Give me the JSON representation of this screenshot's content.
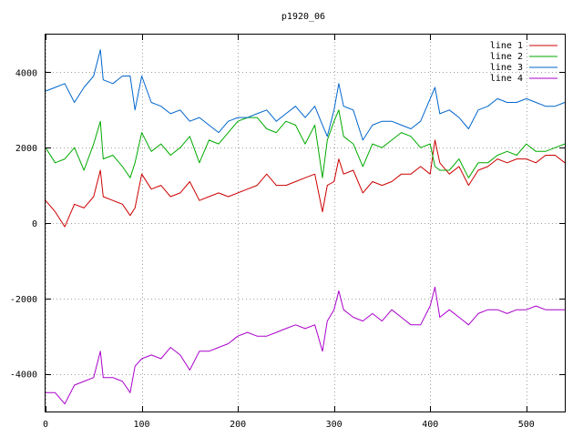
{
  "chart_data": {
    "type": "line",
    "title": "p1920_06",
    "xlabel": "",
    "ylabel": "",
    "xlim": [
      0,
      540
    ],
    "ylim": [
      -5000,
      5000
    ],
    "xticks": [
      0,
      100,
      200,
      300,
      400,
      500
    ],
    "yticks": [
      -4000,
      -2000,
      0,
      2000,
      4000
    ],
    "xtick_labels": [
      "0",
      "100",
      "200",
      "300",
      "400",
      "500"
    ],
    "ytick_labels": [
      "-4000",
      "-2000",
      "0",
      "2000",
      "4000"
    ],
    "grid": true,
    "legend_position": "top-right",
    "x": [
      0,
      10,
      20,
      30,
      40,
      50,
      57,
      60,
      70,
      80,
      88,
      93,
      100,
      110,
      120,
      130,
      140,
      150,
      160,
      170,
      180,
      190,
      200,
      210,
      220,
      230,
      240,
      250,
      260,
      270,
      280,
      288,
      293,
      300,
      305,
      310,
      320,
      330,
      340,
      350,
      360,
      370,
      380,
      390,
      400,
      405,
      410,
      420,
      430,
      440,
      450,
      460,
      470,
      480,
      490,
      500,
      510,
      520,
      530,
      540
    ],
    "series": [
      {
        "name": "line 1",
        "color": "#cc0000",
        "values": [
          600,
          300,
          -100,
          500,
          400,
          700,
          1400,
          700,
          600,
          500,
          200,
          400,
          1300,
          900,
          1000,
          700,
          800,
          1100,
          600,
          700,
          800,
          700,
          800,
          900,
          1000,
          1300,
          1000,
          1000,
          1100,
          1200,
          1300,
          300,
          1000,
          1100,
          1700,
          1300,
          1400,
          800,
          1100,
          1000,
          1100,
          1300,
          1300,
          1500,
          1300,
          2200,
          1600,
          1300,
          1500,
          1000,
          1400,
          1500,
          1700,
          1600,
          1700,
          1700,
          1600,
          1800,
          1800,
          1600
        ]
      },
      {
        "name": "line 2",
        "color": "#00aa00",
        "values": [
          2000,
          1600,
          1700,
          2000,
          1400,
          2100,
          2700,
          1700,
          1800,
          1500,
          1200,
          1600,
          2400,
          1900,
          2100,
          1800,
          2000,
          2300,
          1600,
          2200,
          2100,
          2400,
          2700,
          2800,
          2800,
          2500,
          2400,
          2700,
          2600,
          2100,
          2600,
          1200,
          2200,
          2700,
          3000,
          2300,
          2100,
          1500,
          2100,
          2000,
          2200,
          2400,
          2300,
          2000,
          2100,
          1500,
          1400,
          1400,
          1700,
          1200,
          1600,
          1600,
          1800,
          1900,
          1800,
          2100,
          1900,
          1900,
          2000,
          2100
        ]
      },
      {
        "name": "line 3",
        "color": "#0066cc",
        "values": [
          3500,
          3600,
          3700,
          3200,
          3600,
          3900,
          4600,
          3800,
          3700,
          3900,
          3900,
          3000,
          3900,
          3200,
          3100,
          2900,
          3000,
          2700,
          2800,
          2600,
          2400,
          2700,
          2800,
          2800,
          2900,
          3000,
          2700,
          2900,
          3100,
          2800,
          3100,
          2600,
          2300,
          3000,
          3700,
          3100,
          3000,
          2200,
          2600,
          2700,
          2700,
          2600,
          2500,
          2700,
          3300,
          3600,
          2900,
          3000,
          2800,
          2500,
          3000,
          3100,
          3300,
          3200,
          3200,
          3300,
          3200,
          3100,
          3100,
          3200
        ]
      },
      {
        "name": "line 4",
        "color": "#aa00cc",
        "values": [
          -4500,
          -4500,
          -4800,
          -4300,
          -4200,
          -4100,
          -3400,
          -4100,
          -4100,
          -4200,
          -4500,
          -3800,
          -3600,
          -3500,
          -3600,
          -3300,
          -3500,
          -3900,
          -3400,
          -3400,
          -3300,
          -3200,
          -3000,
          -2900,
          -3000,
          -3000,
          -2900,
          -2800,
          -2700,
          -2800,
          -2700,
          -3400,
          -2600,
          -2300,
          -1800,
          -2300,
          -2500,
          -2600,
          -2400,
          -2600,
          -2300,
          -2500,
          -2700,
          -2700,
          -2200,
          -1700,
          -2500,
          -2300,
          -2500,
          -2700,
          -2400,
          -2300,
          -2300,
          -2400,
          -2300,
          -2300,
          -2200,
          -2300,
          -2300,
          -2300
        ]
      }
    ]
  }
}
